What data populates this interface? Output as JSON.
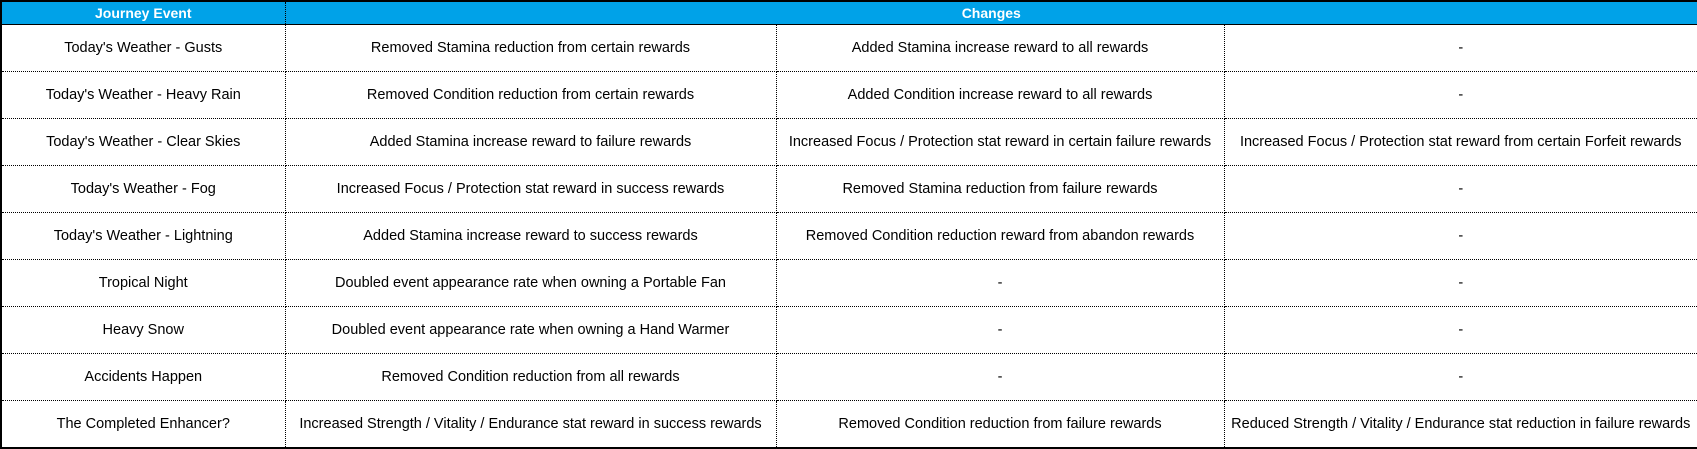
{
  "table": {
    "header": [
      "Journey Event",
      "Changes"
    ],
    "rows": [
      [
        "Today's Weather - Gusts",
        "Removed Stamina reduction from certain rewards",
        "Added Stamina increase reward to all rewards",
        "-"
      ],
      [
        "Today's Weather - Heavy Rain",
        "Removed Condition reduction from certain rewards",
        "Added Condition increase reward to all rewards",
        "-"
      ],
      [
        "Today's Weather - Clear Skies",
        "Added Stamina increase reward to failure rewards",
        "Increased Focus / Protection stat reward in certain failure rewards",
        "Increased Focus / Protection stat reward from certain Forfeit rewards"
      ],
      [
        "Today's Weather - Fog",
        "Increased Focus / Protection stat reward in success rewards",
        "Removed Stamina reduction from failure rewards",
        "-"
      ],
      [
        "Today's Weather - Lightning",
        "Added Stamina increase reward to success rewards",
        "Removed Condition reduction reward from abandon rewards",
        "-"
      ],
      [
        "Tropical Night",
        "Doubled event appearance rate when owning a Portable Fan",
        "-",
        "-"
      ],
      [
        "Heavy Snow",
        "Doubled event appearance rate when owning a Hand Warmer",
        "-",
        "-"
      ],
      [
        "Accidents Happen",
        "Removed Condition reduction from all rewards",
        "-",
        "-"
      ],
      [
        "The Completed Enhancer?",
        "Increased Strength / Vitality / Endurance stat reward in success rewards",
        "Removed Condition reduction from failure rewards",
        "Reduced Strength / Vitality / Endurance stat reduction in failure rewards"
      ]
    ]
  }
}
